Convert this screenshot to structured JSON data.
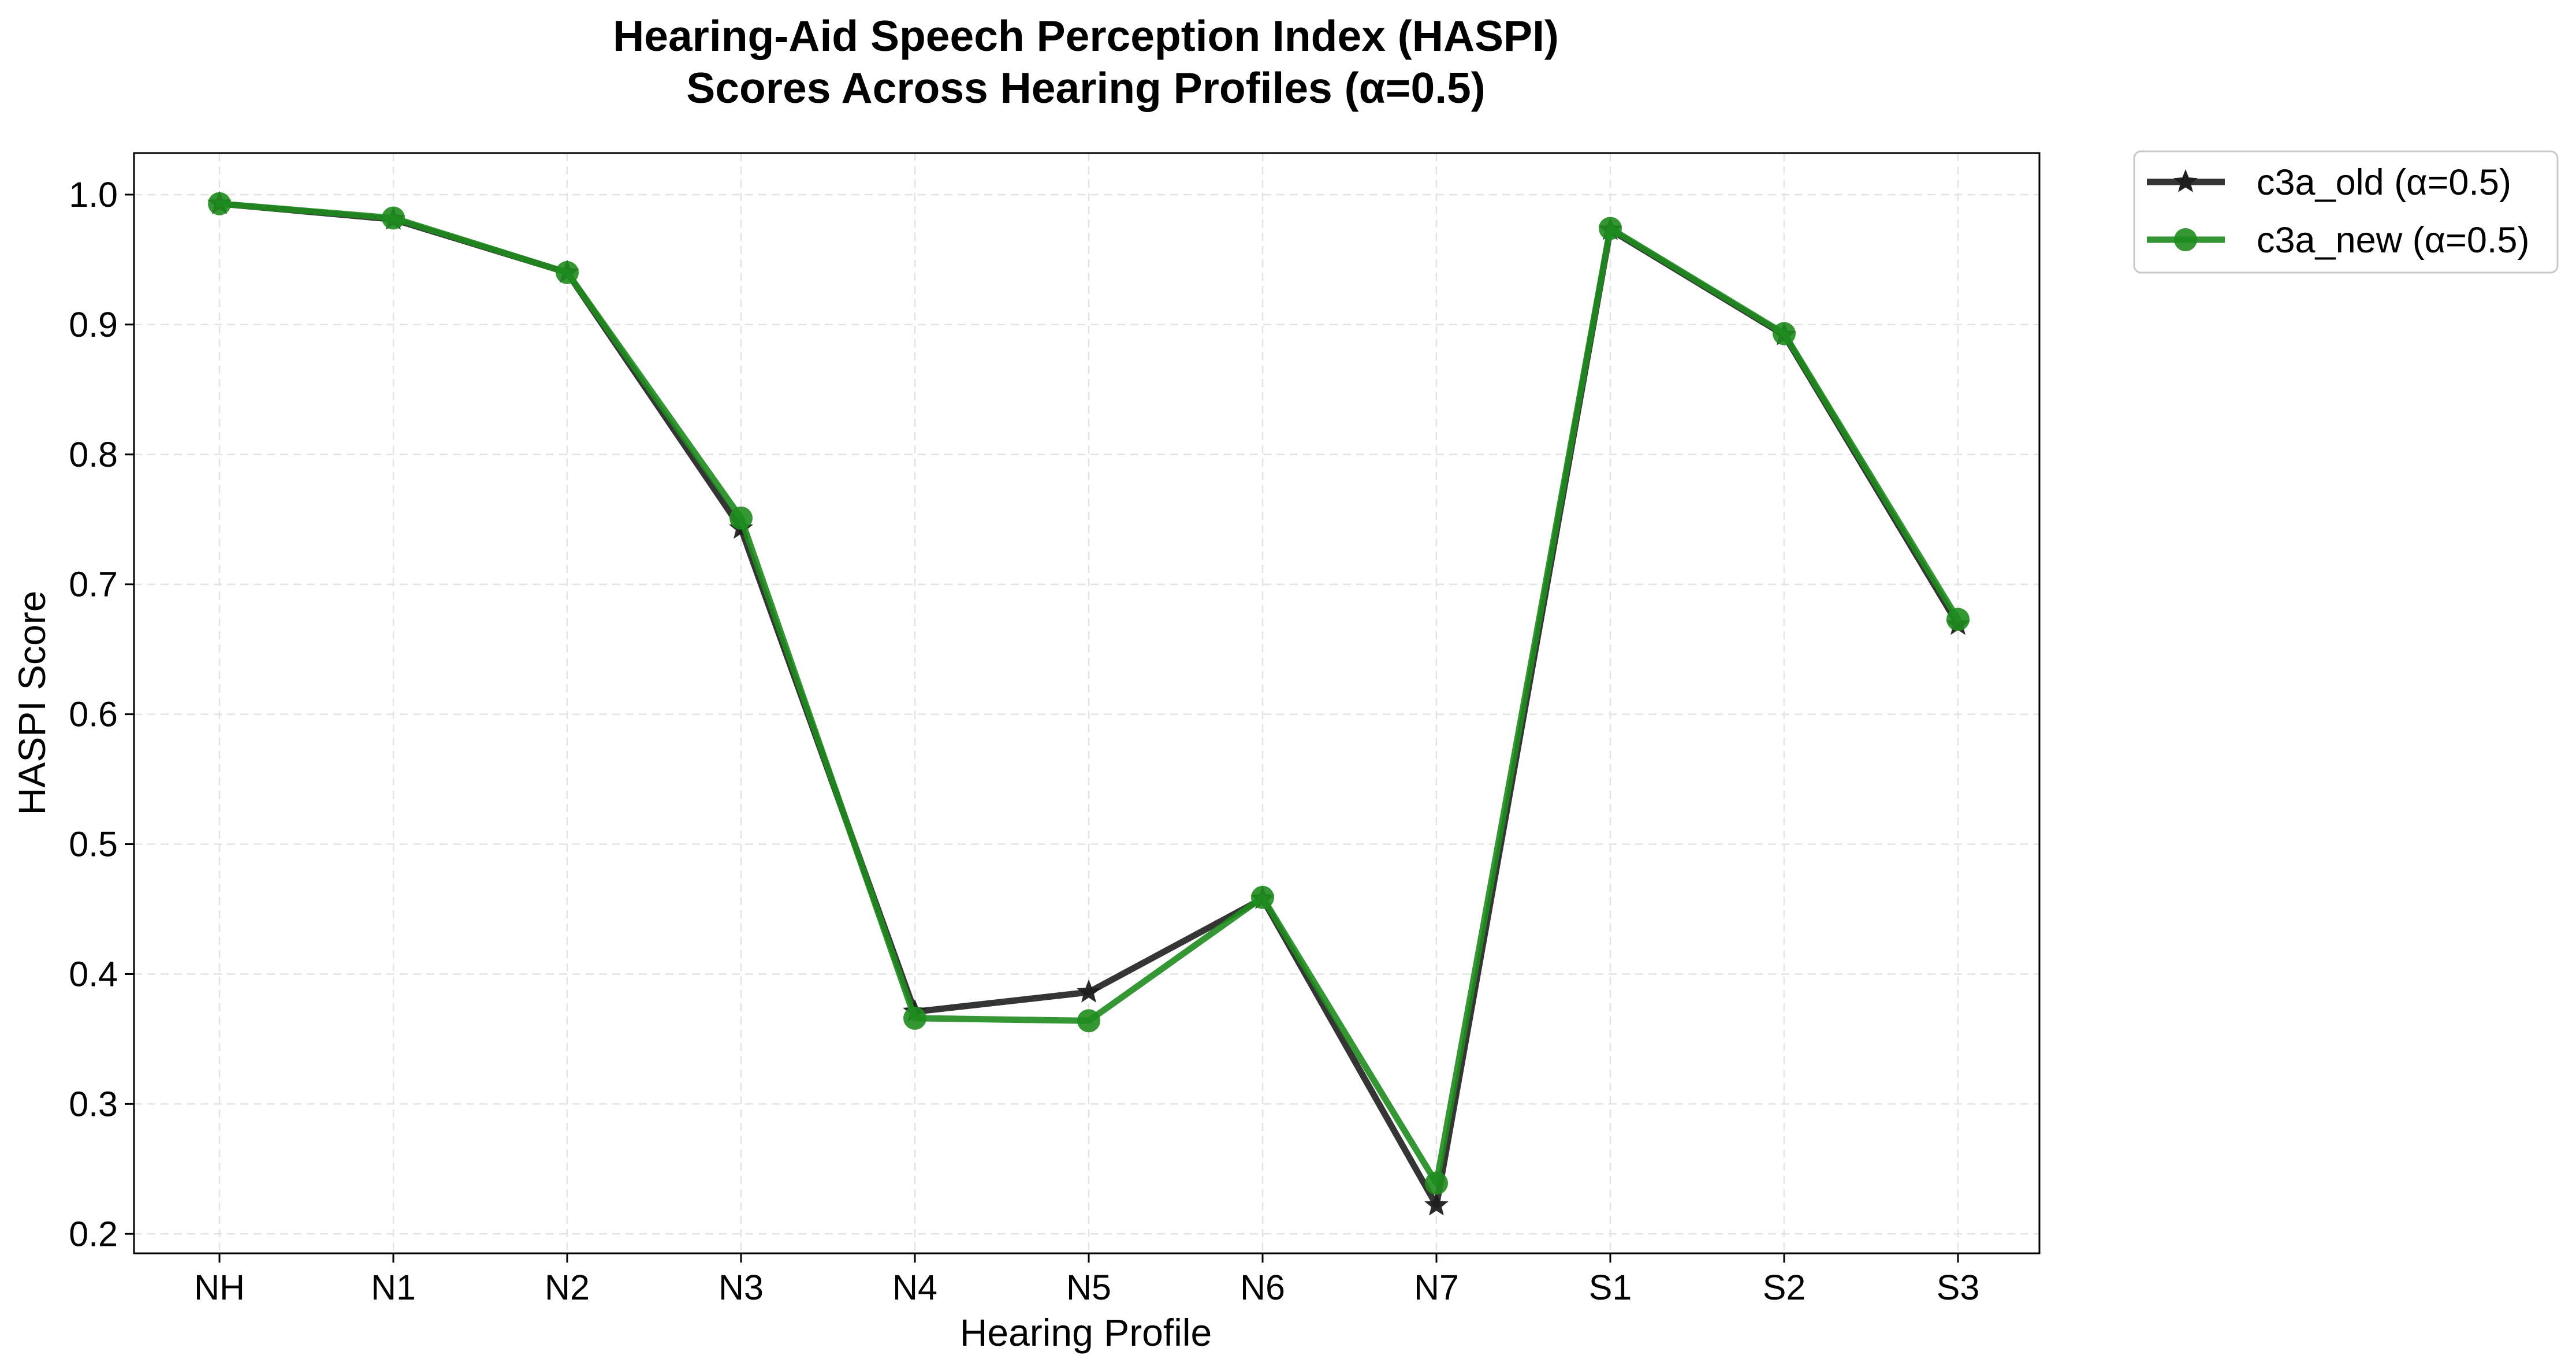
{
  "chart_data": {
    "type": "line",
    "title_lines": [
      "Hearing-Aid Speech Perception Index (HASPI)",
      "Scores Across Hearing Profiles (α=0.5)"
    ],
    "xlabel": "Hearing Profile",
    "ylabel": "HASPI Score",
    "categories": [
      "NH",
      "N1",
      "N2",
      "N3",
      "N4",
      "N5",
      "N6",
      "N7",
      "S1",
      "S2",
      "S3"
    ],
    "ylim": [
      0.185,
      1.032
    ],
    "yticks": [
      "0.2",
      "0.3",
      "0.4",
      "0.5",
      "0.6",
      "0.7",
      "0.8",
      "0.9",
      "1.0"
    ],
    "grid": true,
    "legend_position": "outside top-right",
    "series": [
      {
        "name": "c3a_old (α=0.5)",
        "color": "#1f1f1f",
        "marker": "star",
        "values": [
          0.993,
          0.981,
          0.94,
          0.743,
          0.371,
          0.386,
          0.458,
          0.222,
          0.973,
          0.892,
          0.669
        ]
      },
      {
        "name": "c3a_new (α=0.5)",
        "color": "#1e8c1e",
        "marker": "circle",
        "values": [
          0.993,
          0.982,
          0.94,
          0.751,
          0.366,
          0.364,
          0.459,
          0.239,
          0.974,
          0.893,
          0.673
        ]
      }
    ]
  }
}
